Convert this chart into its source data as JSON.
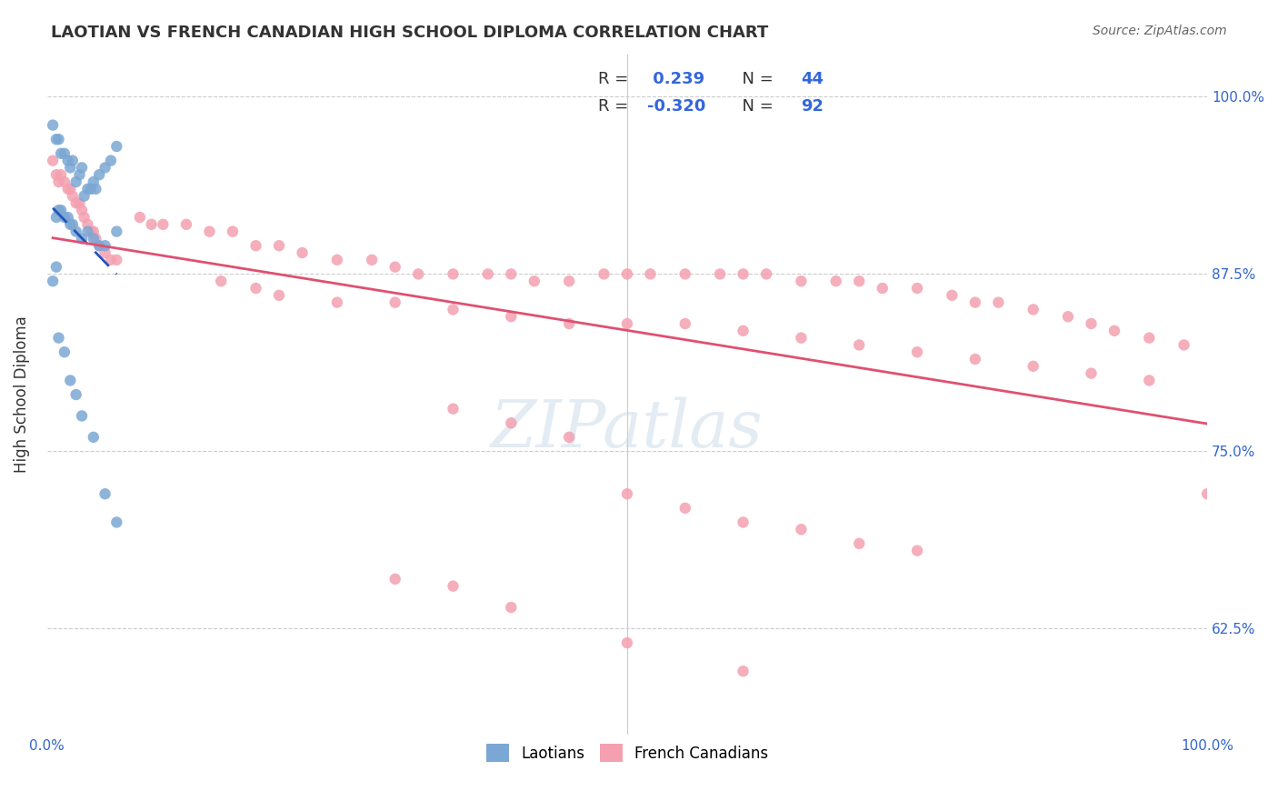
{
  "title": "LAOTIAN VS FRENCH CANADIAN HIGH SCHOOL DIPLOMA CORRELATION CHART",
  "source": "Source: ZipAtlas.com",
  "xlabel": "",
  "ylabel": "High School Diploma",
  "xlim": [
    0.0,
    1.0
  ],
  "ylim": [
    0.55,
    1.03
  ],
  "yticks": [
    0.625,
    0.75,
    0.875,
    1.0
  ],
  "ytick_labels": [
    "62.5%",
    "75.0%",
    "87.5%",
    "100.0%"
  ],
  "xticks": [
    0.0,
    0.2,
    0.4,
    0.6,
    0.8,
    1.0
  ],
  "xtick_labels": [
    "0.0%",
    "",
    "",
    "",
    "",
    "100.0%"
  ],
  "laotian_color": "#7BA7D4",
  "french_canadian_color": "#F4A0B0",
  "trend_laotian_color": "#2255BB",
  "trend_french_canadian_color": "#E05070",
  "watermark_text": "ZIPatlas",
  "watermark_color": "#C8D8E8",
  "R_laotian": 0.239,
  "N_laotian": 44,
  "R_french": -0.32,
  "N_french": 92,
  "legend_label_laotian": "Laotians",
  "legend_label_french": "French Canadians",
  "laotian_x": [
    0.005,
    0.008,
    0.01,
    0.012,
    0.015,
    0.018,
    0.02,
    0.022,
    0.025,
    0.028,
    0.03,
    0.032,
    0.035,
    0.038,
    0.04,
    0.042,
    0.045,
    0.05,
    0.055,
    0.06,
    0.008,
    0.01,
    0.012,
    0.015,
    0.018,
    0.02,
    0.022,
    0.025,
    0.03,
    0.035,
    0.04,
    0.045,
    0.05,
    0.06,
    0.005,
    0.008,
    0.01,
    0.015,
    0.02,
    0.025,
    0.03,
    0.04,
    0.05,
    0.06
  ],
  "laotian_y": [
    0.98,
    0.97,
    0.97,
    0.96,
    0.96,
    0.955,
    0.95,
    0.955,
    0.94,
    0.945,
    0.95,
    0.93,
    0.935,
    0.935,
    0.94,
    0.935,
    0.945,
    0.95,
    0.955,
    0.965,
    0.915,
    0.92,
    0.92,
    0.915,
    0.915,
    0.91,
    0.91,
    0.905,
    0.9,
    0.905,
    0.9,
    0.895,
    0.895,
    0.905,
    0.87,
    0.88,
    0.83,
    0.82,
    0.8,
    0.79,
    0.775,
    0.76,
    0.72,
    0.7
  ],
  "french_x": [
    0.005,
    0.008,
    0.01,
    0.012,
    0.015,
    0.018,
    0.02,
    0.022,
    0.025,
    0.028,
    0.03,
    0.032,
    0.035,
    0.038,
    0.04,
    0.042,
    0.045,
    0.05,
    0.055,
    0.06,
    0.08,
    0.09,
    0.1,
    0.12,
    0.14,
    0.16,
    0.18,
    0.2,
    0.22,
    0.25,
    0.28,
    0.3,
    0.32,
    0.35,
    0.38,
    0.4,
    0.42,
    0.45,
    0.48,
    0.5,
    0.52,
    0.55,
    0.58,
    0.6,
    0.62,
    0.65,
    0.68,
    0.7,
    0.72,
    0.75,
    0.78,
    0.8,
    0.82,
    0.85,
    0.88,
    0.9,
    0.92,
    0.95,
    0.98,
    1.0,
    0.15,
    0.18,
    0.2,
    0.25,
    0.3,
    0.35,
    0.4,
    0.45,
    0.5,
    0.55,
    0.6,
    0.65,
    0.7,
    0.75,
    0.8,
    0.85,
    0.9,
    0.95,
    0.35,
    0.4,
    0.45,
    0.5,
    0.55,
    0.6,
    0.65,
    0.7,
    0.75,
    0.3,
    0.35,
    0.4,
    0.5,
    0.6
  ],
  "french_y": [
    0.955,
    0.945,
    0.94,
    0.945,
    0.94,
    0.935,
    0.935,
    0.93,
    0.925,
    0.925,
    0.92,
    0.915,
    0.91,
    0.905,
    0.905,
    0.9,
    0.895,
    0.89,
    0.885,
    0.885,
    0.915,
    0.91,
    0.91,
    0.91,
    0.905,
    0.905,
    0.895,
    0.895,
    0.89,
    0.885,
    0.885,
    0.88,
    0.875,
    0.875,
    0.875,
    0.875,
    0.87,
    0.87,
    0.875,
    0.875,
    0.875,
    0.875,
    0.875,
    0.875,
    0.875,
    0.87,
    0.87,
    0.87,
    0.865,
    0.865,
    0.86,
    0.855,
    0.855,
    0.85,
    0.845,
    0.84,
    0.835,
    0.83,
    0.825,
    0.72,
    0.87,
    0.865,
    0.86,
    0.855,
    0.855,
    0.85,
    0.845,
    0.84,
    0.84,
    0.84,
    0.835,
    0.83,
    0.825,
    0.82,
    0.815,
    0.81,
    0.805,
    0.8,
    0.78,
    0.77,
    0.76,
    0.72,
    0.71,
    0.7,
    0.695,
    0.685,
    0.68,
    0.66,
    0.655,
    0.64,
    0.615,
    0.595
  ]
}
